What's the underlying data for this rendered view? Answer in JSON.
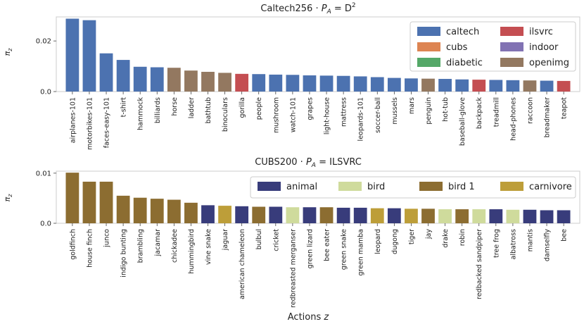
{
  "colors": {
    "caltech": "#4c72b0",
    "cubs": "#dd8452",
    "diabetic": "#55a868",
    "ilsvrc": "#c44e52",
    "indoor": "#8172b3",
    "openimg": "#937860",
    "animal": "#383c7b",
    "bird": "#cfdb9c",
    "bird 1": "#8c6d31",
    "carnivore": "#bd9e39"
  },
  "shared": {
    "xlabel": "Actions z"
  },
  "chart_data": [
    {
      "type": "bar",
      "title": "Caltech256 · P_A = D^2",
      "title_main": "Caltech256 · ",
      "title_math": "P",
      "title_sub": "A",
      "title_eq": " = D",
      "title_sup": "2",
      "ylabel": "π_z",
      "ylabel_main": "π",
      "ylabel_sub": "z",
      "ylim": [
        0,
        0.0295
      ],
      "yticks": [
        0.0,
        0.02
      ],
      "ytick_labels": [
        "0.0",
        "0.02"
      ],
      "legend_loc": "upper-right",
      "legend": [
        "caltech",
        "ilsvrc",
        "cubs",
        "indoor",
        "diabetic",
        "openimg"
      ],
      "categories": [
        "airplanes-101",
        "motorbikes-101",
        "faces-easy-101",
        "t-shirt",
        "hammock",
        "billiards",
        "horse",
        "ladder",
        "bathtub",
        "binoculars",
        "gorilla",
        "people",
        "mushroom",
        "watch-101",
        "grapes",
        "light-house",
        "mattress",
        "leopards-101",
        "soccer-ball",
        "mussels",
        "mars",
        "penguin",
        "hot-tub",
        "baseball-glove",
        "backpack",
        "treadmill",
        "head-phones",
        "raccoon",
        "breadmaker",
        "teapot"
      ],
      "values": [
        0.0288,
        0.0282,
        0.0151,
        0.0125,
        0.0098,
        0.0096,
        0.0094,
        0.0083,
        0.0078,
        0.0074,
        0.007,
        0.0069,
        0.0067,
        0.0066,
        0.0064,
        0.0063,
        0.0062,
        0.006,
        0.0057,
        0.0054,
        0.0052,
        0.0051,
        0.005,
        0.0048,
        0.0047,
        0.0046,
        0.0045,
        0.0044,
        0.0043,
        0.0042
      ],
      "groups": [
        "caltech",
        "caltech",
        "caltech",
        "caltech",
        "caltech",
        "caltech",
        "openimg",
        "openimg",
        "openimg",
        "openimg",
        "ilsvrc",
        "caltech",
        "caltech",
        "caltech",
        "caltech",
        "caltech",
        "caltech",
        "caltech",
        "caltech",
        "caltech",
        "caltech",
        "openimg",
        "caltech",
        "caltech",
        "ilsvrc",
        "caltech",
        "caltech",
        "openimg",
        "caltech",
        "ilsvrc"
      ]
    },
    {
      "type": "bar",
      "title": "CUBS200 · P_A = ILSVRC",
      "title_main": "CUBS200 · ",
      "title_math": "P",
      "title_sub": "A",
      "title_eq": " = ILSVRC",
      "title_sup": "",
      "ylabel": "π_z",
      "ylabel_main": "π",
      "ylabel_sub": "z",
      "ylim": [
        0,
        0.0104
      ],
      "yticks": [
        0.0,
        0.01
      ],
      "ytick_labels": [
        "0.0",
        "0.01"
      ],
      "legend_loc": "upper-right",
      "legend": [
        "animal",
        "bird",
        "bird 1",
        "carnivore"
      ],
      "categories": [
        "goldfinch",
        "house finch",
        "junco",
        "indigo bunting",
        "brambling",
        "jacamar",
        "chickadee",
        "hummingbird",
        "vine snake",
        "jaguar",
        "american chameleon",
        "bulbul",
        "cricket",
        "redbreasted merganser",
        "green lizard",
        "bee eater",
        "green snake",
        "green mamba",
        "leopard",
        "dugong",
        "tiger",
        "jay",
        "drake",
        "robin",
        "redbacked sandpiper",
        "tree frog",
        "albatross",
        "mantis",
        "damselfly",
        "bee"
      ],
      "values": [
        0.0101,
        0.0083,
        0.0083,
        0.0055,
        0.0051,
        0.0049,
        0.0047,
        0.0041,
        0.0036,
        0.0035,
        0.0034,
        0.0033,
        0.0033,
        0.0032,
        0.0032,
        0.0032,
        0.0031,
        0.0031,
        0.003,
        0.003,
        0.0029,
        0.0029,
        0.0028,
        0.0028,
        0.0028,
        0.0028,
        0.0027,
        0.0027,
        0.0026,
        0.0026
      ],
      "groups": [
        "bird 1",
        "bird 1",
        "bird 1",
        "bird 1",
        "bird 1",
        "bird 1",
        "bird 1",
        "bird 1",
        "animal",
        "carnivore",
        "animal",
        "bird 1",
        "animal",
        "bird",
        "animal",
        "bird 1",
        "animal",
        "animal",
        "carnivore",
        "animal",
        "carnivore",
        "bird 1",
        "bird",
        "bird 1",
        "bird",
        "animal",
        "bird",
        "animal",
        "animal",
        "animal"
      ]
    }
  ]
}
